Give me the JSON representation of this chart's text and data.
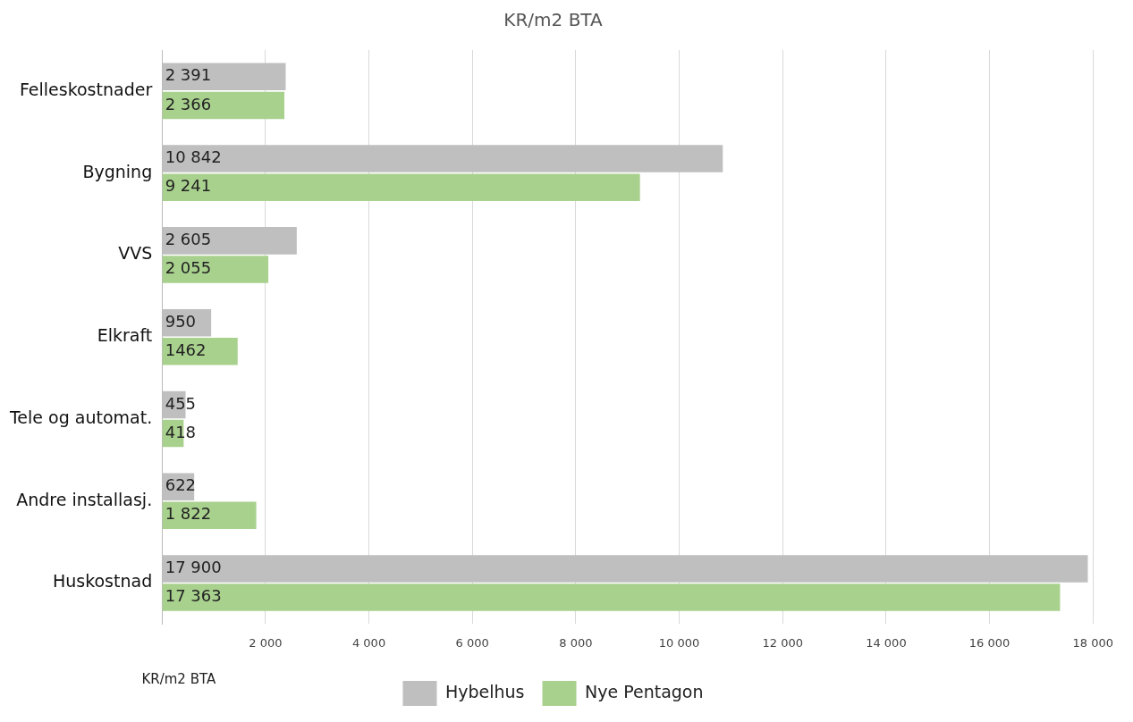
{
  "chart_data": {
    "type": "bar",
    "orientation": "horizontal",
    "title": "KR/m2 BTA",
    "xlabel": "KR/m2 BTA",
    "categories": [
      "Felleskostnader",
      "Bygning",
      "VVS",
      "Elkraft",
      "Tele og automat.",
      "Andre installasj.",
      "Huskostnad"
    ],
    "series": [
      {
        "name": "Hybelhus",
        "color": "#bfbfbf",
        "values": [
          2391,
          10842,
          2605,
          950,
          455,
          622,
          17900
        ],
        "value_labels": [
          "2 391",
          "10 842",
          "2 605",
          "950",
          "455",
          "622",
          "17 900"
        ]
      },
      {
        "name": "Nye Pentagon",
        "color": "#a9d18e",
        "values": [
          2366,
          9241,
          2055,
          1462,
          418,
          1822,
          17363
        ],
        "value_labels": [
          "2 366",
          "9 241",
          "2 055",
          "1462",
          "418",
          "1 822",
          "17 363"
        ]
      }
    ],
    "xlim": [
      0,
      18000
    ],
    "xticks": [
      {
        "value": 0,
        "label": null
      },
      {
        "value": 2000,
        "label": "2 000"
      },
      {
        "value": 4000,
        "label": "4 000"
      },
      {
        "value": 6000,
        "label": "6 000"
      },
      {
        "value": 8000,
        "label": "8 000"
      },
      {
        "value": 10000,
        "label": "10 000"
      },
      {
        "value": 12000,
        "label": "12 000"
      },
      {
        "value": 14000,
        "label": "14 000"
      },
      {
        "value": 16000,
        "label": "16 000"
      },
      {
        "value": 18000,
        "label": "18 000"
      }
    ],
    "grid": "x",
    "legend": "bottom"
  }
}
